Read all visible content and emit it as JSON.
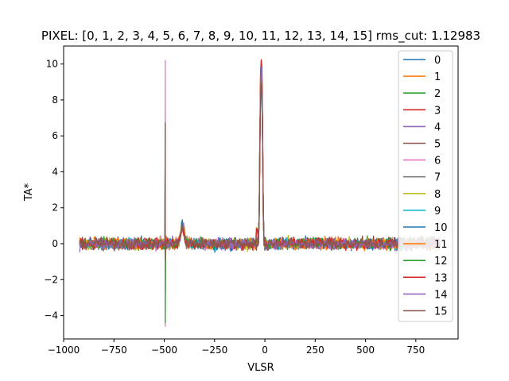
{
  "chart_data": {
    "type": "line",
    "title": "PIXEL: [0, 1, 2, 3, 4, 5, 6, 7, 8, 9, 10, 11, 12, 13, 14, 15]   rms_cut: 1.12983",
    "xlabel": "VLSR",
    "ylabel": "TA*",
    "xlim": [
      -1000,
      960
    ],
    "ylim": [
      -5.3,
      11.0
    ],
    "xticks": [
      -1000,
      -750,
      -500,
      -250,
      0,
      250,
      500,
      750
    ],
    "xtick_labels": [
      "−1000",
      "−750",
      "−500",
      "−250",
      "0",
      "250",
      "500",
      "750"
    ],
    "yticks": [
      -4,
      -2,
      0,
      2,
      4,
      6,
      8,
      10
    ],
    "ytick_labels": [
      "−4",
      "−2",
      "0",
      "2",
      "4",
      "6",
      "8",
      "10"
    ],
    "x_range": [
      -920,
      870
    ],
    "noise_level": 0.2,
    "grid": false,
    "legend_position": "top-right",
    "features": {
      "main_peak": {
        "center": -18,
        "peak": 10.2
      },
      "spike": {
        "x": -495,
        "max": 10.2,
        "min": -4.6
      },
      "bump": {
        "x": -410,
        "height": 1.2
      }
    },
    "series": [
      {
        "name": "0",
        "color": "#1f77b4"
      },
      {
        "name": "1",
        "color": "#ff7f0e"
      },
      {
        "name": "2",
        "color": "#2ca02c"
      },
      {
        "name": "3",
        "color": "#d62728"
      },
      {
        "name": "4",
        "color": "#9467bd"
      },
      {
        "name": "5",
        "color": "#8c564b"
      },
      {
        "name": "6",
        "color": "#e377c2"
      },
      {
        "name": "7",
        "color": "#7f7f7f"
      },
      {
        "name": "8",
        "color": "#bcbd22"
      },
      {
        "name": "9",
        "color": "#17becf"
      },
      {
        "name": "10",
        "color": "#1f77b4"
      },
      {
        "name": "11",
        "color": "#ff7f0e"
      },
      {
        "name": "12",
        "color": "#2ca02c"
      },
      {
        "name": "13",
        "color": "#d62728"
      },
      {
        "name": "14",
        "color": "#9467bd"
      },
      {
        "name": "15",
        "color": "#8c564b"
      }
    ]
  }
}
